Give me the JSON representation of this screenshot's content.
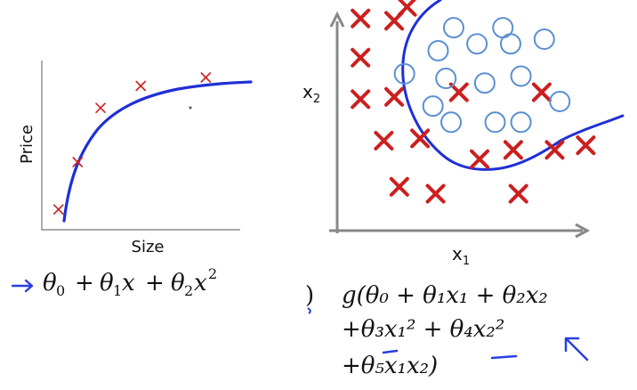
{
  "colors": {
    "cross": "#cc1f1f",
    "curve": "#1f2fd6",
    "circle_stroke": "#5b8fd1",
    "boundary": "#1f2fd6",
    "axis_left": "#777777",
    "axis_right": "#888888",
    "pen_blue": "#2a3fe0"
  },
  "left_plot": {
    "xlabel": "Size",
    "ylabel": "Price",
    "formula": {
      "theta0": "θ",
      "sub0": "0",
      "plus1": "+",
      "theta1": "θ",
      "sub1": "1",
      "x1": "x",
      "plus2": "+",
      "theta2": "θ",
      "sub2": "2",
      "x2": "x",
      "sup2": "2"
    }
  },
  "right_plot": {
    "xlabel_main": "x",
    "xlabel_sub": "1",
    "ylabel_main": "x",
    "ylabel_sub": "2",
    "formula": {
      "line1": "g(θ₀ + θ₁x₁ + θ₂x₂",
      "line2": "+θ₃x₁² + θ₄x₂²",
      "line3": "+θ₅x₁x₂)"
    }
  },
  "chart_data": [
    {
      "type": "scatter",
      "xlabel": "Size",
      "ylabel": "Price",
      "title": "",
      "points": [
        {
          "x": 0.05,
          "y": 0.12
        },
        {
          "x": 0.15,
          "y": 0.4
        },
        {
          "x": 0.27,
          "y": 0.72
        },
        {
          "x": 0.48,
          "y": 0.85
        },
        {
          "x": 0.82,
          "y": 0.9
        }
      ],
      "fit_curve": "theta0 + theta1*x + theta2*x^2 (increasing, concave)"
    },
    {
      "type": "scatter",
      "xlabel": "x1",
      "ylabel": "x2",
      "title": "",
      "series": [
        {
          "name": "",
          "marker": "cross",
          "points": [
            [
              0.27,
              0.97
            ],
            [
              0.09,
              0.92
            ],
            [
              0.22,
              0.91
            ],
            [
              0.09,
              0.75
            ],
            [
              0.22,
              0.58
            ],
            [
              0.09,
              0.57
            ],
            [
              0.47,
              0.6
            ],
            [
              0.79,
              0.6
            ],
            [
              0.18,
              0.39
            ],
            [
              0.32,
              0.4
            ],
            [
              0.55,
              0.31
            ],
            [
              0.68,
              0.35
            ],
            [
              0.84,
              0.35
            ],
            [
              0.96,
              0.37
            ],
            [
              0.24,
              0.19
            ],
            [
              0.38,
              0.16
            ],
            [
              0.7,
              0.16
            ]
          ]
        },
        {
          "name": "",
          "marker": "circle",
          "points": [
            [
              0.45,
              0.88
            ],
            [
              0.64,
              0.88
            ],
            [
              0.39,
              0.78
            ],
            [
              0.54,
              0.81
            ],
            [
              0.67,
              0.81
            ],
            [
              0.8,
              0.83
            ],
            [
              0.26,
              0.68
            ],
            [
              0.42,
              0.66
            ],
            [
              0.57,
              0.64
            ],
            [
              0.71,
              0.67
            ],
            [
              0.86,
              0.56
            ],
            [
              0.37,
              0.54
            ],
            [
              0.44,
              0.47
            ],
            [
              0.61,
              0.47
            ],
            [
              0.71,
              0.47
            ]
          ]
        }
      ],
      "decision_boundary": "closed quadratic curve separating circles (top-center) from crosses"
    }
  ]
}
